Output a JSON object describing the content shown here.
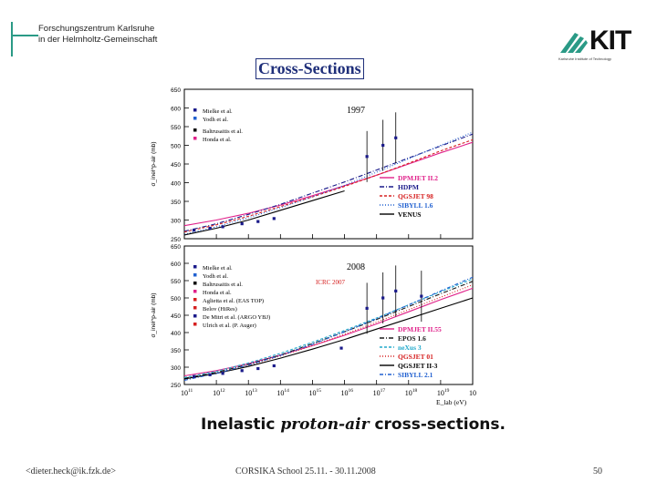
{
  "header": {
    "institution_line1": "Forschungszentrum Karlsruhe",
    "institution_line2": "in der Helmholtz-Gemeinschaft",
    "logo_text": "KIT",
    "logo_subtext": "Karlsruhe Institute of Technology"
  },
  "slide": {
    "title": "Cross-Sections",
    "caption_prefix": "Inelastic ",
    "caption_italic": "proton-air",
    "caption_suffix": " cross-sections."
  },
  "footer": {
    "email": "<dieter.heck@ik.fzk.de>",
    "event": "CORSIKA School 25.11. - 30.11.2008",
    "page": "50"
  },
  "colors": {
    "accent_teal": "#2a9a86",
    "title_blue": "#1f2f7a",
    "dpmjet": "#e0208a",
    "qgsjet": "#d62020",
    "sibyll": "#2060d0",
    "epos": "#22aacc"
  },
  "chart_data": [
    {
      "type": "line",
      "title": "1997",
      "ylabel": "σ_inel^p-air (mb)",
      "ylim": [
        250,
        650
      ],
      "yticks": [
        250,
        300,
        350,
        400,
        450,
        500,
        550,
        600,
        650
      ],
      "x": [
        11,
        12,
        13,
        14,
        15,
        16,
        17,
        18,
        19,
        20
      ],
      "legend_left": [
        "Mielke et al.",
        "Yodh et al.",
        "Baltrusaitis et al.",
        "Honda et al."
      ],
      "series": [
        {
          "name": "DPMJET II.2",
          "color": "#e0208a",
          "values": [
            285,
            300,
            318,
            340,
            365,
            392,
            420,
            450,
            480,
            508
          ]
        },
        {
          "name": "HDPM",
          "color": "#1a1a8a",
          "values": [
            270,
            290,
            315,
            342,
            372,
            402,
            434,
            466,
            498,
            530
          ]
        },
        {
          "name": "QGSJET 98",
          "color": "#d62020",
          "values": [
            268,
            287,
            310,
            336,
            362,
            390,
            420,
            452,
            485,
            515
          ]
        },
        {
          "name": "SIBYLL 1.6",
          "color": "#2060d0",
          "values": [
            262,
            282,
            306,
            333,
            362,
            393,
            428,
            464,
            500,
            535
          ]
        },
        {
          "name": "VENUS",
          "color": "#000000",
          "values": [
            260,
            278,
            300,
            326,
            352,
            378,
            null,
            null,
            null,
            null
          ]
        }
      ],
      "points": [
        {
          "x": 11.3,
          "y": 273
        },
        {
          "x": 11.8,
          "y": 278
        },
        {
          "x": 12.2,
          "y": 282
        },
        {
          "x": 12.8,
          "y": 290
        },
        {
          "x": 13.3,
          "y": 296
        },
        {
          "x": 13.8,
          "y": 304
        },
        {
          "x": 16.7,
          "y": 470
        },
        {
          "x": 17.2,
          "y": 500
        },
        {
          "x": 17.6,
          "y": 520
        }
      ]
    },
    {
      "type": "line",
      "title": "2008",
      "ylabel": "σ_inel^p-air (mb)",
      "ylim": [
        250,
        650
      ],
      "yticks": [
        250,
        300,
        350,
        400,
        450,
        500,
        550,
        600,
        650
      ],
      "x": [
        11,
        12,
        13,
        14,
        15,
        16,
        17,
        18,
        19,
        20
      ],
      "xticks": [
        "10^11",
        "10^12",
        "10^13",
        "10^14",
        "10^15",
        "10^16",
        "10^17",
        "10^18",
        "10^19",
        "10^20"
      ],
      "xlabel": "E_lab (eV)",
      "annotation": "ICRC 2007",
      "legend_left": [
        "Mielke et al.",
        "Yodh et al.",
        "Baltrusaitis et al.",
        "Honda et al.",
        "Aglietta et al. (EAS TOP)",
        "Belov (HiRes)",
        "De Mitri et al. (ARGO YBJ)",
        "Ulrich et al. (P. Auger)"
      ],
      "series": [
        {
          "name": "DPMJET II.55",
          "color": "#e0208a",
          "values": [
            275,
            290,
            310,
            335,
            362,
            392,
            425,
            460,
            495,
            528
          ]
        },
        {
          "name": "EPOS 1.6",
          "color": "#1a1a1a",
          "values": [
            268,
            285,
            308,
            335,
            368,
            402,
            438,
            475,
            512,
            548
          ]
        },
        {
          "name": "neXus 3",
          "color": "#22aacc",
          "values": [
            270,
            288,
            312,
            340,
            372,
            406,
            442,
            480,
            518,
            555
          ]
        },
        {
          "name": "QGSJET 01",
          "color": "#d62020",
          "values": [
            265,
            283,
            305,
            332,
            362,
            395,
            430,
            466,
            502,
            538
          ]
        },
        {
          "name": "QGSJET II-3",
          "color": "#000000",
          "values": [
            266,
            282,
            302,
            326,
            352,
            380,
            410,
            440,
            470,
            500
          ]
        },
        {
          "name": "SIBYLL 2.1",
          "color": "#2060d0",
          "values": [
            262,
            282,
            306,
            334,
            366,
            402,
            440,
            480,
            520,
            560
          ]
        }
      ],
      "points": [
        {
          "x": 11.3,
          "y": 273
        },
        {
          "x": 11.8,
          "y": 278
        },
        {
          "x": 12.2,
          "y": 282
        },
        {
          "x": 12.8,
          "y": 290
        },
        {
          "x": 13.3,
          "y": 296
        },
        {
          "x": 13.8,
          "y": 304
        },
        {
          "x": 15.9,
          "y": 355
        },
        {
          "x": 16.7,
          "y": 470
        },
        {
          "x": 17.2,
          "y": 500
        },
        {
          "x": 17.6,
          "y": 520
        },
        {
          "x": 18.4,
          "y": 505
        }
      ]
    }
  ]
}
